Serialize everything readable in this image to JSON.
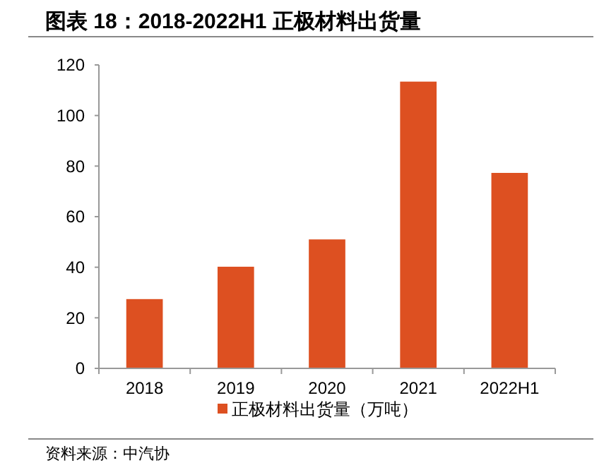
{
  "chart_data": {
    "type": "bar",
    "title": "图表 18：2018-2022H1 正极材料出货量",
    "categories": [
      "2018",
      "2019",
      "2020",
      "2021",
      "2022H1"
    ],
    "series": [
      {
        "name": "正极材料出货量（万吨）",
        "color": "#dd5021",
        "values": [
          27.4,
          40.2,
          51,
          113.4,
          77.3
        ]
      }
    ],
    "ylim": [
      0,
      120
    ],
    "yticks": [
      0,
      20,
      40,
      60,
      80,
      100,
      120
    ],
    "grid": false,
    "legend": "bottom",
    "annotations": [
      "资料来源：中汽协"
    ]
  }
}
